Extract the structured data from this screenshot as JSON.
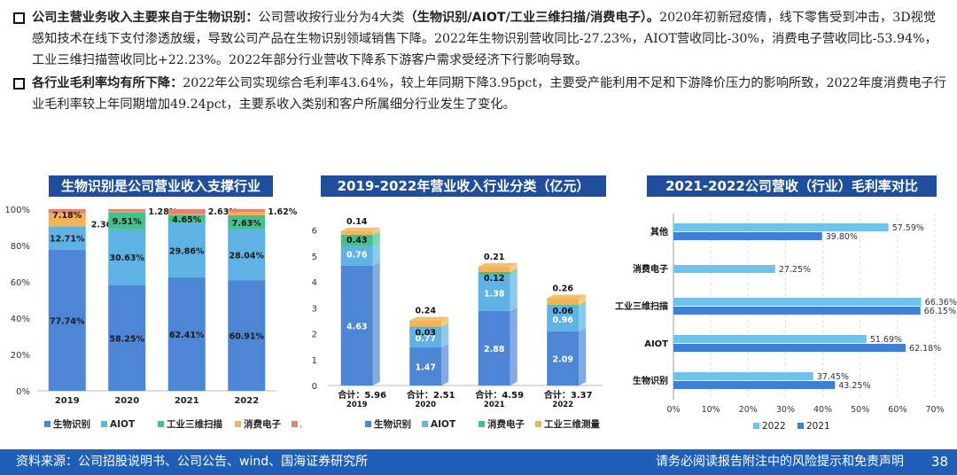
{
  "bullets": [
    {
      "head": "公司主营业务收入主要来自于生物识别：",
      "text": "公司营收按行业分为4大类",
      "bold": "（生物识别/AIOT/工业三维扫描/消费电子）。",
      "tail": "2020年初新冠疫情，线下零售受到冲击，3D视觉感知技术在线下支付渗透放缓，导致公司产品在生物识别领域销售下降。2022年生物识别营收同比-27.23%，AIOT营收同比-30%，消费电子营收同比-53.94%，工业三维扫描营收同比+22.23%。2022年部分行业营收下降系下游客户需求受经济下行影响导致。"
    },
    {
      "head": "各行业毛利率均有所下降：",
      "text": "2022年公司实现综合毛利率43.64%，较上年同期下降3.95pct，主要受产能利用不足和下游降价压力的影响所致，2022年度消费电子行业毛利率较上年同期增加49.24pct，主要系收入类别和客户所属细分行业发生了变化。",
      "bold": "",
      "tail": ""
    }
  ],
  "chart_data": [
    {
      "type": "bar",
      "stacked": true,
      "title": "生物识别是公司营业收入支撑行业",
      "categories": [
        "2019",
        "2020",
        "2021",
        "2022"
      ],
      "yticks": [
        "0%",
        "20%",
        "40%",
        "60%",
        "80%",
        "100%"
      ],
      "ylim": [
        0,
        100
      ],
      "series": [
        {
          "name": "生物识别",
          "values": [
            77.74,
            58.25,
            62.41,
            60.91
          ],
          "labels": [
            "77.74%",
            "58.25%",
            "62.41%",
            "60.91%"
          ]
        },
        {
          "name": "AIOT",
          "values": [
            12.71,
            30.63,
            29.86,
            28.04
          ],
          "labels": [
            "12.71%",
            "30.63%",
            "29.86%",
            "28.04%"
          ]
        },
        {
          "name": "工业三维扫描",
          "values": [
            0,
            9.51,
            4.65,
            7.63
          ],
          "labels": [
            "",
            "9.51%",
            "4.65%",
            "7.63%"
          ]
        },
        {
          "name": "消费电子",
          "values": [
            7.18,
            0.33,
            0.45,
            1.8
          ],
          "labels": [
            "7.18%",
            "",
            "",
            ""
          ]
        },
        {
          "name": "其他",
          "values": [
            2.36,
            1.28,
            2.63,
            1.62
          ],
          "labels": [
            "2.36%",
            "1.28%",
            "2.63%",
            "1.62%"
          ]
        }
      ],
      "legend": "bottom"
    },
    {
      "type": "bar",
      "stacked": true,
      "title": "2019-2022年营业收入行业分类（亿元）",
      "categories": [
        "2019",
        "2020",
        "2021",
        "2022"
      ],
      "yticks": [
        "0",
        "1",
        "2",
        "3",
        "4",
        "5",
        "6"
      ],
      "ylim": [
        0,
        6.5
      ],
      "series": [
        {
          "name": "生物识别",
          "values": [
            4.63,
            1.47,
            2.88,
            2.09
          ]
        },
        {
          "name": "AIOT",
          "values": [
            0.76,
            0.77,
            1.38,
            0.96
          ]
        },
        {
          "name": "消费电子",
          "values": [
            0.43,
            0.03,
            0.12,
            0.06
          ]
        },
        {
          "name": "工业三维测量",
          "values": [
            0.14,
            0.24,
            0.21,
            0.26
          ]
        }
      ],
      "totals": [
        "合计：5.96",
        "合计：2.51",
        "合计：4.59",
        "合计：3.37"
      ],
      "legend": "bottom"
    },
    {
      "type": "bar",
      "orientation": "horizontal",
      "title": "2021-2022公司营收（行业）毛利率对比",
      "categories": [
        "其他",
        "消费电子",
        "工业三维扫描",
        "AIOT",
        "生物识别"
      ],
      "xticks": [
        "0%",
        "10%",
        "20%",
        "30%",
        "40%",
        "50%",
        "60%",
        "70%"
      ],
      "xlim": [
        0,
        70
      ],
      "series": [
        {
          "name": "2022",
          "values": [
            57.59,
            27.25,
            66.36,
            51.69,
            37.45
          ],
          "labels": [
            "57.59%",
            "27.25%",
            "66.36%",
            "51.69%",
            "37.45%"
          ]
        },
        {
          "name": "2021",
          "values": [
            39.8,
            null,
            66.15,
            62.18,
            43.25
          ],
          "labels": [
            "39.80%",
            "",
            "66.15%",
            "62.18%",
            "43.25%"
          ]
        }
      ],
      "legend": "bottom"
    }
  ],
  "colors": {
    "bio": "#4e86d6",
    "aiot": "#5fb3e4",
    "ind": "#43c08e",
    "cons": "#f3b457",
    "other": "#e8836f",
    "h2022": "#6fc3ea",
    "h2021": "#3f7fd6",
    "title_bg": "#1f4f9c"
  },
  "footer": {
    "source": "资料来源：公司招股说明书、公司公告、wind、国海证券研究所",
    "disclaimer": "请务必阅读报告附注中的风险提示和免责声明",
    "page": "38"
  }
}
